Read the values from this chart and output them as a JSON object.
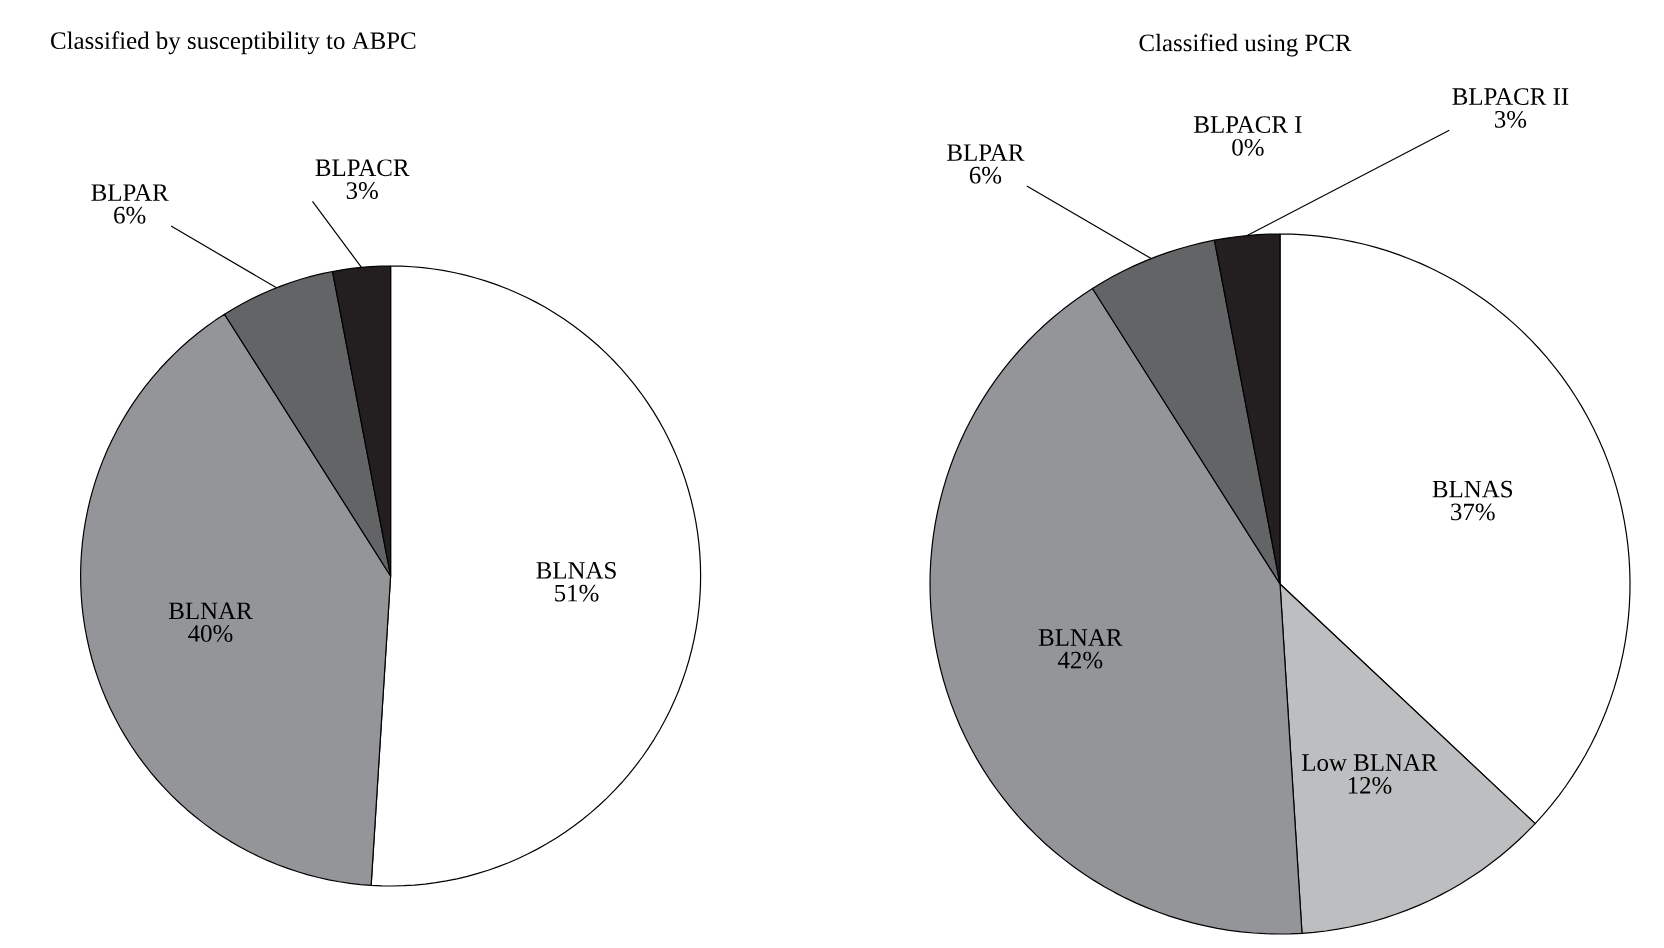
{
  "chart_data": [
    {
      "type": "pie",
      "title": "Classified by susceptibility to ABPC",
      "categories": [
        "BLNAS",
        "BLNAR",
        "BLPAR",
        "BLPACR"
      ],
      "values": [
        51,
        40,
        6,
        3
      ],
      "value_labels": [
        "51%",
        "40%",
        "6%",
        "3%"
      ],
      "colors": [
        "#ffffff",
        "#939598",
        "#636466",
        "#231f20"
      ]
    },
    {
      "type": "pie",
      "title": "Classified using PCR",
      "categories": [
        "BLNAS",
        "Low BLNAR",
        "BLNAR",
        "BLPAR",
        "BLPACR I",
        "BLPACR II"
      ],
      "values": [
        37,
        12,
        42,
        6,
        0,
        3
      ],
      "value_labels": [
        "37%",
        "12%",
        "42%",
        "6%",
        "0%",
        "3%"
      ],
      "colors": [
        "#ffffff",
        "#bcbec0",
        "#939598",
        "#636466",
        "#231f20",
        "#231f20"
      ]
    }
  ]
}
